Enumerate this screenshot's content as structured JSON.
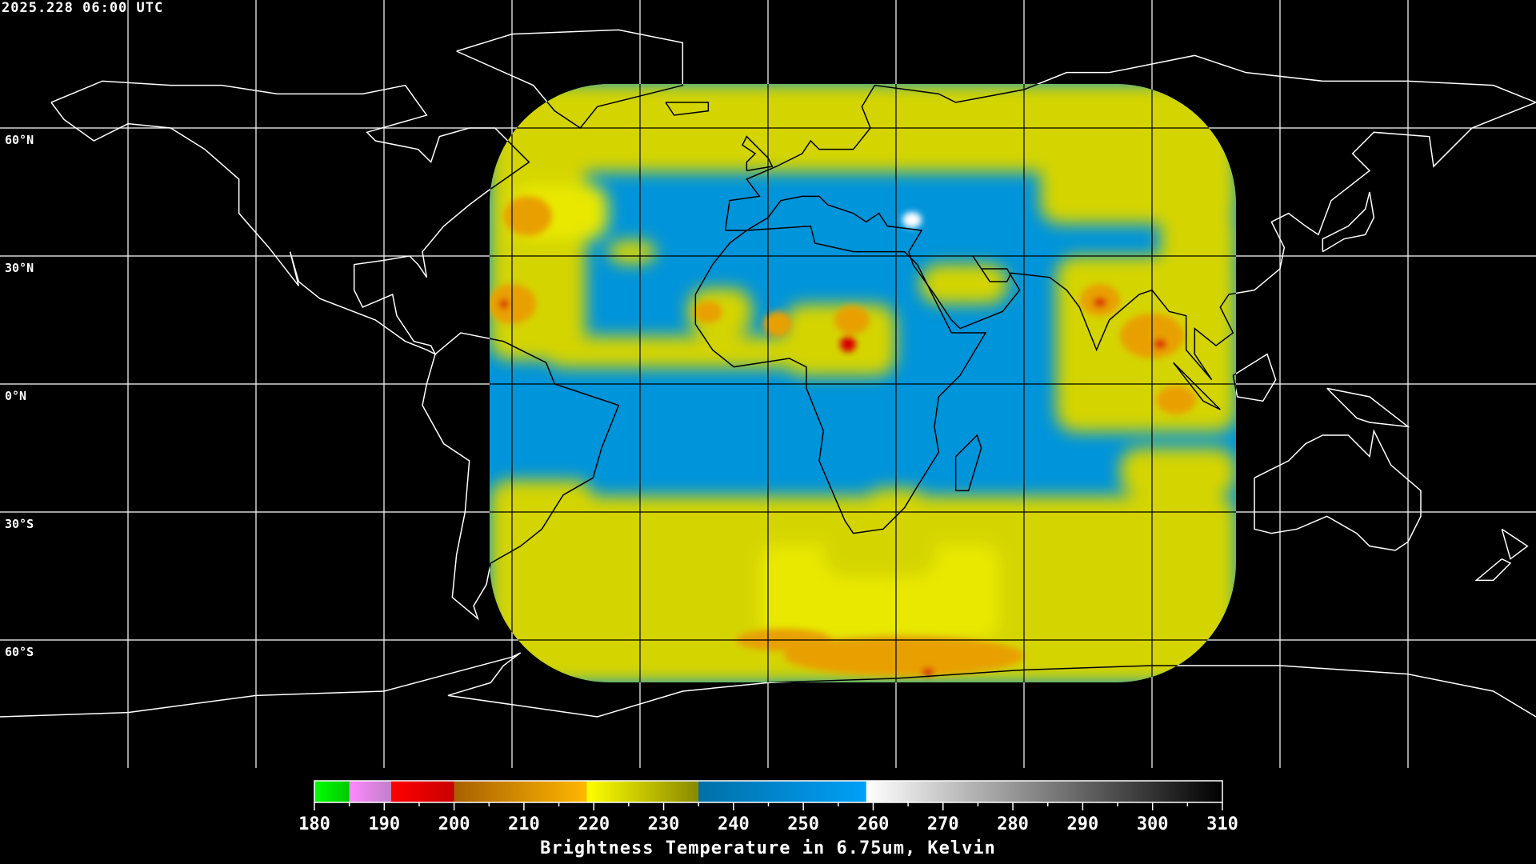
{
  "timestamp": "2025.228 06:00 UTC",
  "map": {
    "projection": "equirectangular",
    "grid_spacing_deg": 30,
    "grid_color_outside": "#ffffff",
    "grid_color_inside": "#000000",
    "coast_color_outside": "#ffffff",
    "coast_color_inside": "#000000",
    "lat_labels": [
      "60°N",
      "30°N",
      "0°N",
      "30°S",
      "60°S"
    ]
  },
  "colorbar": {
    "title": "Brightness Temperature in 6.75um, Kelvin",
    "min": 180,
    "max": 310,
    "tick_step": 5,
    "labels": [
      "180",
      "190",
      "200",
      "210",
      "220",
      "230",
      "240",
      "250",
      "260",
      "270",
      "280",
      "290",
      "300",
      "310"
    ],
    "segments": [
      {
        "from": 180,
        "to": 185,
        "c1": "#00ff00",
        "c2": "#00c800"
      },
      {
        "from": 185,
        "to": 191,
        "c1": "#ff88ff",
        "c2": "#c080c8"
      },
      {
        "from": 191,
        "to": 200,
        "c1": "#ff0000",
        "c2": "#c80000"
      },
      {
        "from": 200,
        "to": 219,
        "c1": "#a86000",
        "c2": "#ffb800"
      },
      {
        "from": 219,
        "to": 235,
        "c1": "#ffff00",
        "c2": "#888800"
      },
      {
        "from": 235,
        "to": 259,
        "c1": "#0070a8",
        "c2": "#00a0f8"
      },
      {
        "from": 259,
        "to": 310,
        "c1": "#ffffff",
        "c2": "#000000"
      }
    ]
  },
  "palette": {
    "blue": "#0094da",
    "yellow": "#d8d800",
    "orange": "#e8a000",
    "red": "#d80000",
    "white": "#ffffff"
  }
}
